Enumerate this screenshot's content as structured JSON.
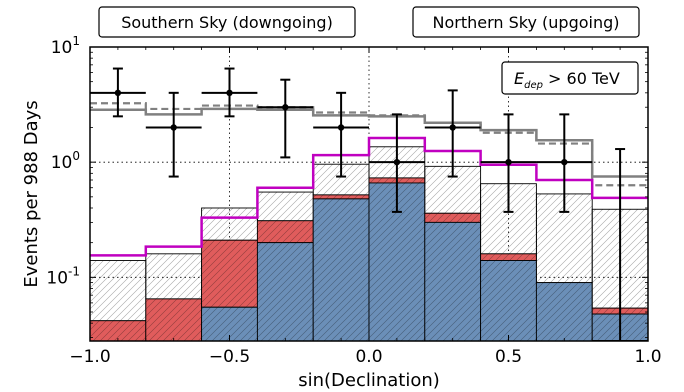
{
  "chart_data": {
    "type": "histogram",
    "xlabel": "sin(Declination)",
    "ylabel": "Events per 988 Days",
    "x_ticks": [
      "−1.0",
      "−0.5",
      "0.0",
      "0.5",
      "1.0"
    ],
    "y_ticks": [
      {
        "base": "10",
        "exp": "1",
        "value": 10
      },
      {
        "base": "10",
        "exp": "0",
        "value": 1
      },
      {
        "base": "10",
        "exp": "-1",
        "value": 0.1
      }
    ],
    "xlim": [
      -1.0,
      1.0
    ],
    "ylim": [
      0.028,
      10
    ],
    "y_scale": "log",
    "grid": "dotted",
    "annotations": {
      "southern": "Southern Sky (downgoing)",
      "northern": "Northern Sky (upgoing)",
      "energy_var": "E",
      "energy_sub": "dep",
      "energy_rest": " > 60 TeV"
    },
    "bin_edges": [
      -1.0,
      -0.8,
      -0.6,
      -0.4,
      -0.2,
      0.0,
      0.2,
      0.4,
      0.6,
      0.8,
      1.0
    ],
    "stack": {
      "blue": [
        0.028,
        0.028,
        0.055,
        0.2,
        0.48,
        0.66,
        0.3,
        0.14,
        0.09,
        0.048
      ],
      "red_top": [
        0.042,
        0.065,
        0.21,
        0.31,
        0.52,
        0.73,
        0.36,
        0.16,
        0.09,
        0.054
      ],
      "thin_top": [
        0.14,
        0.16,
        0.4,
        0.55,
        0.96,
        1.36,
        0.92,
        0.65,
        0.53,
        0.39
      ]
    },
    "series": [
      {
        "color": "#c000c0",
        "values": [
          0.155,
          0.185,
          0.33,
          0.6,
          1.15,
          1.62,
          1.25,
          0.95,
          0.7,
          0.49
        ]
      },
      {
        "color": "#808080",
        "values": [
          2.85,
          2.6,
          2.9,
          2.85,
          2.55,
          2.5,
          2.2,
          1.9,
          1.55,
          0.75
        ]
      },
      {
        "color": "#808080",
        "dashed": true,
        "values": [
          3.25,
          2.9,
          3.1,
          3.0,
          2.7,
          2.55,
          2.2,
          1.8,
          1.45,
          0.63
        ]
      }
    ],
    "data_points": [
      {
        "x": -0.9,
        "y": 4.0,
        "ylow": 2.5,
        "yhigh": 6.5
      },
      {
        "x": -0.7,
        "y": 2.0,
        "ylow": 0.75,
        "yhigh": 4.0
      },
      {
        "x": -0.5,
        "y": 4.0,
        "ylow": 2.5,
        "yhigh": 6.5
      },
      {
        "x": -0.3,
        "y": 3.0,
        "ylow": 1.1,
        "yhigh": 5.2
      },
      {
        "x": -0.1,
        "y": 2.0,
        "ylow": 0.75,
        "yhigh": 4.0
      },
      {
        "x": 0.1,
        "y": 1.0,
        "ylow": 0.37,
        "yhigh": 2.6
      },
      {
        "x": 0.3,
        "y": 2.0,
        "ylow": 0.75,
        "yhigh": 4.2
      },
      {
        "x": 0.5,
        "y": 1.0,
        "ylow": 0.37,
        "yhigh": 2.6
      },
      {
        "x": 0.7,
        "y": 1.0,
        "ylow": 0.37,
        "yhigh": 2.6
      },
      {
        "x": 0.9,
        "y": 0.028,
        "ylow": 0.028,
        "yhigh": 1.3
      }
    ],
    "colors": {
      "blue": "#6b8fb8",
      "red": "#e05c5c",
      "magenta": "#c000c0",
      "gray": "#808080",
      "data": "#000000"
    }
  }
}
